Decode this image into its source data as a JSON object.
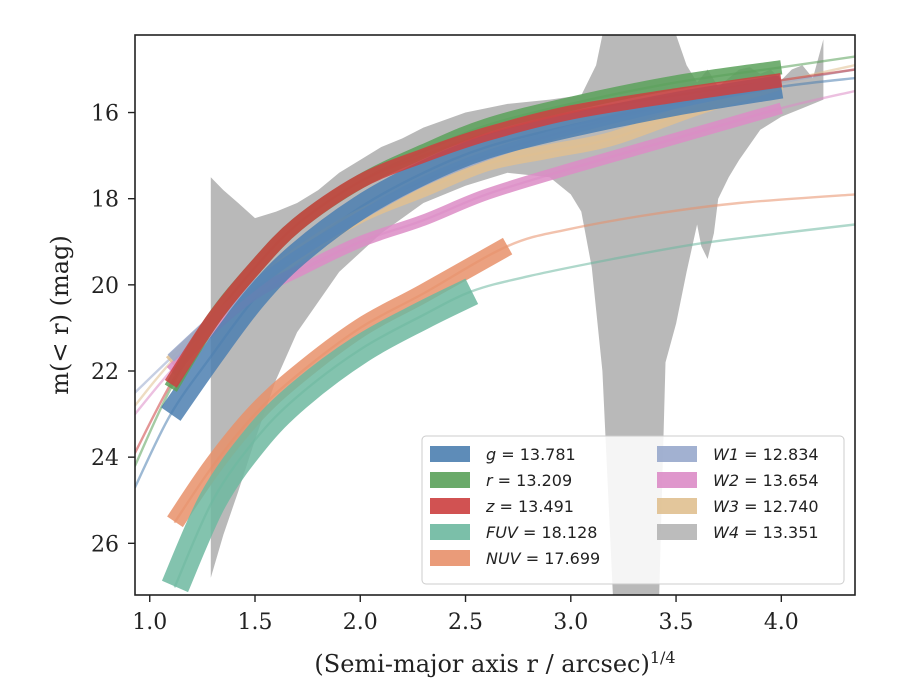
{
  "chart_data": {
    "type": "line",
    "xlabel": "(Semi-major axis r / arcsec)",
    "xlabel_sup": "1/4",
    "ylabel": "m(< r) (mag)",
    "xlim": [
      0.93,
      4.35
    ],
    "ylim": [
      27.2,
      14.2
    ],
    "y_inverted": true,
    "xticks": [
      1.0,
      1.5,
      2.0,
      2.5,
      3.0,
      3.5,
      4.0
    ],
    "xtick_labels": [
      "1.0",
      "1.5",
      "2.0",
      "2.5",
      "3.0",
      "3.5",
      "4.0"
    ],
    "yticks": [
      16,
      18,
      20,
      22,
      24,
      26
    ],
    "ytick_labels": [
      "16",
      "18",
      "20",
      "22",
      "24",
      "26"
    ],
    "legend_location": "lower right",
    "legend_columns": 2,
    "series": [
      {
        "name": "g = 13.781",
        "label_var": "g",
        "label_val": "= 13.781",
        "color": "#4c7fb0",
        "band": 0.25,
        "x": [
          0.93,
          1.1,
          1.3,
          1.5,
          1.7,
          2.0,
          2.3,
          2.6,
          3.0,
          3.5,
          4.0,
          4.35
        ],
        "y": [
          24.7,
          23.0,
          21.6,
          20.3,
          19.3,
          18.2,
          17.4,
          16.8,
          16.3,
          15.8,
          15.4,
          15.2
        ]
      },
      {
        "name": "r = 13.209",
        "label_var": "r",
        "label_val": "= 13.209",
        "color": "#5aa15a",
        "band": 0.15,
        "x": [
          0.93,
          1.1,
          1.3,
          1.5,
          1.7,
          2.0,
          2.3,
          2.6,
          3.0,
          3.5,
          4.0,
          4.35
        ],
        "y": [
          24.2,
          22.4,
          20.8,
          19.6,
          18.6,
          17.6,
          16.9,
          16.3,
          15.8,
          15.3,
          14.95,
          14.7
        ]
      },
      {
        "name": "z = 13.491",
        "label_var": "z",
        "label_val": "= 13.491",
        "color": "#cc3f3f",
        "band": 0.15,
        "x": [
          0.93,
          1.1,
          1.3,
          1.5,
          1.7,
          2.0,
          2.3,
          2.6,
          3.0,
          3.5,
          4.0,
          4.35
        ],
        "y": [
          23.9,
          22.3,
          20.8,
          19.6,
          18.6,
          17.6,
          17.0,
          16.5,
          16.0,
          15.6,
          15.25,
          15.0
        ]
      },
      {
        "name": "FUV = 18.128",
        "label_var": "FUV",
        "label_val": "= 18.128",
        "color": "#6db8a0",
        "band": 0.3,
        "x": [
          1.12,
          1.3,
          1.5,
          1.7,
          2.0,
          2.3,
          2.53,
          2.8,
          3.2,
          3.6,
          4.0,
          4.35
        ],
        "y": [
          27.0,
          25.0,
          23.6,
          22.6,
          21.5,
          20.7,
          20.15,
          19.8,
          19.4,
          19.05,
          18.8,
          18.6
        ]
      },
      {
        "name": "NUV = 17.699",
        "label_var": "NUV",
        "label_val": "= 17.699",
        "color": "#e8906a",
        "band": 0.2,
        "x": [
          1.12,
          1.3,
          1.5,
          1.7,
          2.0,
          2.3,
          2.7,
          3.0,
          3.4,
          3.8,
          4.35
        ],
        "y": [
          25.5,
          24.2,
          23.0,
          22.1,
          21.0,
          20.2,
          19.1,
          18.7,
          18.35,
          18.1,
          17.9
        ]
      },
      {
        "name": "W1 = 12.834",
        "label_var": "W1",
        "label_val": "= 12.834",
        "color": "#98a8cc",
        "band": 0.1,
        "x": [
          0.93,
          1.1,
          1.3,
          1.5,
          1.7,
          2.0,
          2.3,
          2.6,
          3.0,
          3.5,
          4.0,
          4.35
        ],
        "y": [
          22.5,
          21.7,
          20.8,
          20.0,
          19.3,
          18.4,
          17.6,
          17.0,
          16.4,
          15.8,
          15.3,
          15.0
        ]
      },
      {
        "name": "W2 = 13.654",
        "label_var": "W2",
        "label_val": "= 13.654",
        "color": "#dc8cc6",
        "band": 0.12,
        "x": [
          0.93,
          1.1,
          1.3,
          1.5,
          1.7,
          2.0,
          2.3,
          2.6,
          3.0,
          3.5,
          4.0,
          4.35
        ],
        "y": [
          23.0,
          22.0,
          21.0,
          20.2,
          19.7,
          19.0,
          18.5,
          17.9,
          17.3,
          16.6,
          15.9,
          15.5
        ]
      },
      {
        "name": "W3 = 12.740",
        "label_var": "W3",
        "label_val": "= 12.740",
        "color": "#e0c090",
        "band": 0.15,
        "x": [
          0.93,
          1.1,
          1.3,
          1.5,
          1.7,
          2.0,
          2.3,
          2.6,
          2.9,
          3.2,
          3.6,
          4.0,
          4.35
        ],
        "y": [
          22.8,
          21.8,
          20.9,
          20.1,
          19.3,
          18.4,
          17.8,
          17.2,
          16.9,
          16.6,
          15.9,
          15.3,
          14.9
        ]
      },
      {
        "name": "W4 = 13.351",
        "label_var": "W4",
        "label_val": "= 13.351",
        "color": "#b5b5b5",
        "upper_x": [
          1.29,
          1.29,
          1.35,
          1.42,
          1.5,
          1.6,
          1.7,
          1.8,
          1.9,
          2.0,
          2.1,
          2.2,
          2.3,
          2.5,
          2.7,
          2.9,
          3.05,
          3.12,
          3.15,
          3.17,
          3.25,
          3.35,
          3.42,
          3.45,
          3.5,
          3.55,
          3.6,
          3.65,
          3.7,
          3.75,
          3.8,
          3.85,
          3.9,
          3.95,
          4.0,
          4.05,
          4.1,
          4.15,
          4.2
        ],
        "upper_y": [
          17.5,
          17.5,
          17.8,
          18.1,
          18.45,
          18.3,
          18.1,
          17.8,
          17.4,
          17.1,
          16.8,
          16.6,
          16.35,
          16.0,
          15.8,
          15.7,
          15.6,
          14.9,
          14.2,
          14.2,
          14.2,
          14.2,
          14.2,
          14.2,
          14.2,
          14.9,
          15.3,
          15.0,
          15.4,
          15.2,
          15.0,
          14.95,
          15.1,
          15.0,
          15.25,
          15.0,
          14.9,
          15.2,
          14.3
        ],
        "lower_x": [
          4.2,
          4.1,
          4.0,
          3.9,
          3.8,
          3.75,
          3.7,
          3.68,
          3.65,
          3.62,
          3.6,
          3.55,
          3.5,
          3.45,
          3.42,
          3.2,
          3.15,
          3.1,
          3.05,
          3.0,
          2.9,
          2.7,
          2.5,
          2.3,
          2.1,
          1.9,
          1.7,
          1.6,
          1.5,
          1.42,
          1.35,
          1.29
        ],
        "lower_y": [
          15.7,
          15.9,
          16.1,
          16.4,
          17.1,
          17.5,
          18.0,
          18.8,
          19.4,
          19.1,
          18.6,
          19.7,
          20.9,
          21.8,
          27.2,
          27.2,
          22.0,
          19.6,
          18.3,
          17.9,
          17.5,
          17.4,
          17.7,
          18.1,
          18.8,
          19.7,
          21.1,
          22.2,
          23.6,
          24.8,
          25.8,
          26.8
        ]
      }
    ]
  }
}
